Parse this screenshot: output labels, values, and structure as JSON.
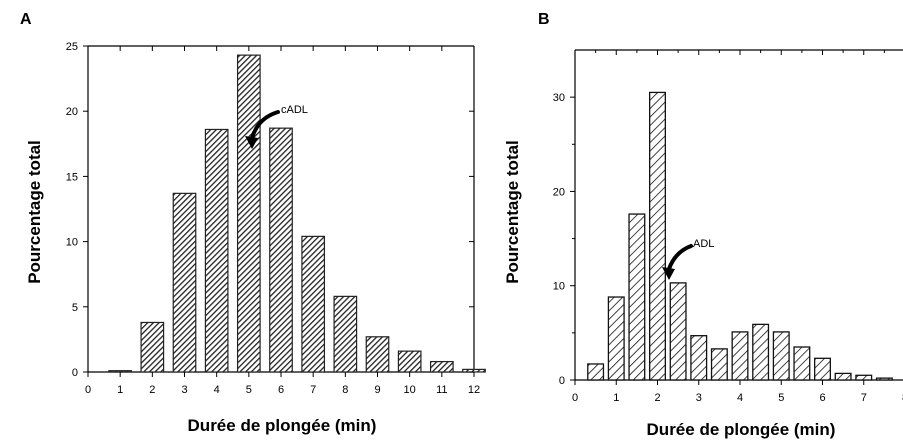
{
  "panels": [
    {
      "letter": "A",
      "ylabel": "Pourcentage total",
      "xlabel": "Durée de plongée (min)",
      "annotation": "cADL"
    },
    {
      "letter": "B",
      "ylabel": "Pourcentage total",
      "xlabel": "Durée de plongée (min)",
      "annotation": "ADL"
    }
  ],
  "chart_data": [
    {
      "type": "bar",
      "title": "",
      "panel": "A",
      "xlabel": "Durée de plongée (min)",
      "ylabel": "Pourcentage total",
      "xlim": [
        0,
        12
      ],
      "ylim": [
        0,
        25
      ],
      "xticks": [
        0,
        1,
        2,
        3,
        4,
        5,
        6,
        7,
        8,
        9,
        10,
        11,
        12
      ],
      "yticks": [
        0,
        5,
        10,
        15,
        20,
        25
      ],
      "bar_width": 0.7,
      "bar_style": "dark hatched",
      "x": [
        1,
        2,
        3,
        4,
        5,
        6,
        7,
        8,
        9,
        10,
        11,
        12
      ],
      "values": [
        0.1,
        3.8,
        13.7,
        18.6,
        24.3,
        18.7,
        10.4,
        5.8,
        2.7,
        1.6,
        0.8,
        0.2
      ],
      "annotation": {
        "text": "cADL",
        "x": 5.1,
        "y": 19.5
      }
    },
    {
      "type": "bar",
      "title": "",
      "panel": "B",
      "xlabel": "Durée de plongée (min)",
      "ylabel": "Pourcentage total",
      "xlim": [
        0,
        8
      ],
      "ylim": [
        0,
        35
      ],
      "xticks": [
        0,
        1,
        2,
        3,
        4,
        5,
        6,
        7,
        8
      ],
      "yticks": [
        0,
        10,
        20,
        30
      ],
      "bar_width": 0.38,
      "bar_style": "light hatched",
      "x": [
        0.5,
        1.0,
        1.5,
        2.0,
        2.5,
        3.0,
        3.5,
        4.0,
        4.5,
        5.0,
        5.5,
        6.0,
        6.5,
        7.0,
        7.5
      ],
      "values": [
        1.7,
        8.8,
        17.6,
        30.5,
        10.3,
        4.7,
        3.3,
        5.1,
        5.9,
        5.1,
        3.5,
        2.3,
        0.7,
        0.5,
        0.2
      ],
      "annotation": {
        "text": "ADL",
        "x": 2.2,
        "y": 11
      }
    }
  ]
}
